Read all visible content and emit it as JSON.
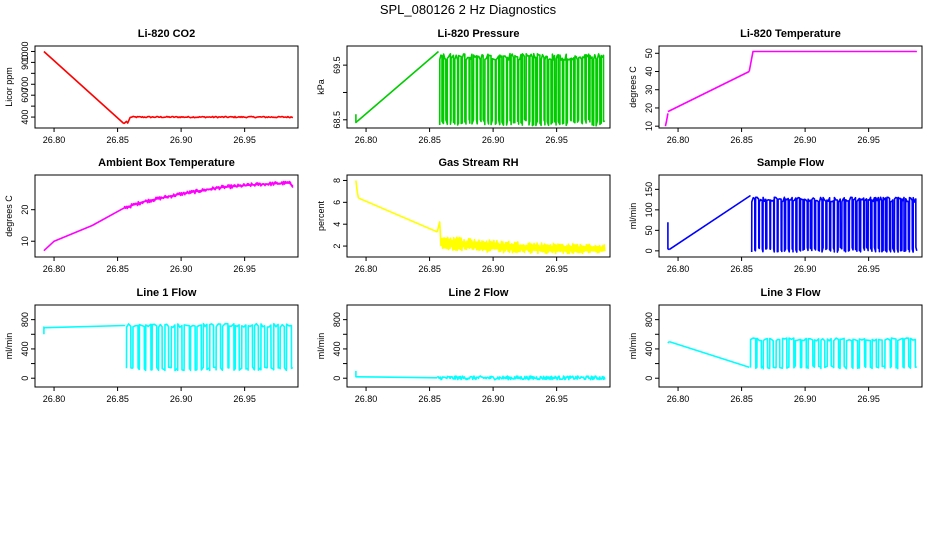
{
  "title": "SPL_080126  2 Hz Diagnostics",
  "colors": {
    "red": "#ff0000",
    "green": "#00cc00",
    "magenta": "#ff00ff",
    "yellow": "#ffff00",
    "blue": "#0000ff",
    "cyan": "#00ffff",
    "axis": "#000000"
  },
  "x_ticks": [
    "26.80",
    "26.85",
    "26.90",
    "26.95"
  ],
  "chart_data": [
    {
      "type": "line",
      "title": "Li-820 CO2",
      "ylabel": "Licor ppm",
      "xlabel": "",
      "color": "#ff0000",
      "xlim": [
        26.785,
        26.992
      ],
      "ylim": [
        300,
        1050
      ],
      "x_ticks": [
        26.8,
        26.85,
        26.9,
        26.95
      ],
      "y_ticks": [
        400,
        500,
        600,
        700,
        800,
        900,
        1000
      ],
      "y_tick_labels": [
        "400",
        "",
        "600",
        "700",
        "",
        "900",
        "1000"
      ],
      "segments": [
        {
          "kind": "line",
          "x": [
            26.792,
            26.855
          ],
          "y": [
            1000,
            340
          ]
        },
        {
          "kind": "line",
          "x": [
            26.855,
            26.857,
            26.858,
            26.86
          ],
          "y": [
            340,
            360,
            345,
            400
          ]
        },
        {
          "kind": "noise",
          "x0": 26.86,
          "x1": 26.988,
          "y": 400,
          "amp": 6,
          "n": 160
        }
      ]
    },
    {
      "type": "line",
      "title": "Li-820 Pressure",
      "ylabel": "kPa",
      "xlabel": "",
      "color": "#00cc00",
      "xlim": [
        26.785,
        26.992
      ],
      "ylim": [
        68.35,
        69.85
      ],
      "x_ticks": [
        26.8,
        26.85,
        26.9,
        26.95
      ],
      "y_ticks": [
        68.5,
        69.0,
        69.5
      ],
      "y_tick_labels": [
        "68.5",
        "",
        "69.5"
      ],
      "segments": [
        {
          "kind": "line",
          "x": [
            26.792,
            26.792,
            26.793
          ],
          "y": [
            68.6,
            68.45,
            68.47
          ]
        },
        {
          "kind": "line",
          "x": [
            26.793,
            26.857
          ],
          "y": [
            68.47,
            69.75
          ]
        },
        {
          "kind": "square",
          "x0": 26.858,
          "x1": 26.988,
          "hi": 69.65,
          "lo": 68.45,
          "cycles": 44,
          "jitter": 0.06
        }
      ]
    },
    {
      "type": "line",
      "title": "Li-820 Temperature",
      "ylabel": "degrees C",
      "xlabel": "",
      "color": "#ff00ff",
      "xlim": [
        26.785,
        26.992
      ],
      "ylim": [
        9,
        54
      ],
      "x_ticks": [
        26.8,
        26.85,
        26.9,
        26.95
      ],
      "y_ticks": [
        10,
        20,
        30,
        40,
        50
      ],
      "y_tick_labels": [
        "10",
        "20",
        "30",
        "40",
        "50"
      ],
      "segments": [
        {
          "kind": "line",
          "x": [
            26.79,
            26.791,
            26.792
          ],
          "y": [
            10,
            13,
            17
          ]
        },
        {
          "kind": "line",
          "x": [
            26.792,
            26.856
          ],
          "y": [
            18,
            40
          ]
        },
        {
          "kind": "line",
          "x": [
            26.856,
            26.859,
            26.988
          ],
          "y": [
            40,
            51,
            51
          ]
        }
      ]
    },
    {
      "type": "line",
      "title": "Ambient Box Temperature",
      "ylabel": "degrees C",
      "xlabel": "",
      "color": "#ff00ff",
      "xlim": [
        26.785,
        26.992
      ],
      "ylim": [
        5,
        31
      ],
      "x_ticks": [
        26.8,
        26.85,
        26.9,
        26.95
      ],
      "y_ticks": [
        10,
        20
      ],
      "y_tick_labels": [
        "10",
        "20"
      ],
      "segments": [
        {
          "kind": "line",
          "x": [
            26.792,
            26.8,
            26.83,
            26.855,
            26.87,
            26.9,
            26.93,
            26.96,
            26.985,
            26.988
          ],
          "y": [
            7,
            10,
            15,
            20.5,
            22.5,
            25,
            27,
            28,
            28.5,
            27.5
          ]
        },
        {
          "kind": "noise",
          "x0": 26.855,
          "x1": 26.988,
          "y": null,
          "amp": 0.6,
          "n": 200,
          "follow": true
        }
      ]
    },
    {
      "type": "line",
      "title": "Gas Stream RH",
      "ylabel": "percent",
      "xlabel": "",
      "color": "#ffff00",
      "xlim": [
        26.785,
        26.992
      ],
      "ylim": [
        1,
        8.5
      ],
      "x_ticks": [
        26.8,
        26.85,
        26.9,
        26.95
      ],
      "y_ticks": [
        2,
        4,
        6,
        8
      ],
      "y_tick_labels": [
        "2",
        "4",
        "6",
        "8"
      ],
      "segments": [
        {
          "kind": "line",
          "x": [
            26.792,
            26.793,
            26.794
          ],
          "y": [
            8.0,
            7.0,
            6.4
          ]
        },
        {
          "kind": "line",
          "x": [
            26.794,
            26.856
          ],
          "y": [
            6.4,
            3.3
          ]
        },
        {
          "kind": "line",
          "x": [
            26.856,
            26.858,
            26.859
          ],
          "y": [
            3.3,
            4.2,
            2.0
          ]
        },
        {
          "kind": "decay",
          "x0": 26.859,
          "x1": 26.988,
          "start": 2.4,
          "end": 1.7,
          "amp": 0.45,
          "n": 220
        }
      ]
    },
    {
      "type": "line",
      "title": "Sample Flow",
      "ylabel": "ml/min",
      "xlabel": "",
      "color": "#0000ff",
      "xlim": [
        26.785,
        26.992
      ],
      "ylim": [
        -15,
        185
      ],
      "x_ticks": [
        26.8,
        26.85,
        26.9,
        26.95
      ],
      "y_ticks": [
        0,
        50,
        100,
        150
      ],
      "y_tick_labels": [
        "0",
        "50",
        "100",
        "150"
      ],
      "segments": [
        {
          "kind": "line",
          "x": [
            26.792,
            26.792,
            26.793
          ],
          "y": [
            70,
            5,
            3
          ]
        },
        {
          "kind": "line",
          "x": [
            26.793,
            26.857
          ],
          "y": [
            3,
            135
          ]
        },
        {
          "kind": "square",
          "x0": 26.858,
          "x1": 26.988,
          "hi": 125,
          "lo": 3,
          "cycles": 44,
          "jitter": 6
        }
      ]
    },
    {
      "type": "line",
      "title": "Line 1 Flow",
      "ylabel": "ml/min",
      "xlabel": "",
      "color": "#00ffff",
      "xlim": [
        26.785,
        26.992
      ],
      "ylim": [
        -120,
        1000
      ],
      "x_ticks": [
        26.8,
        26.85,
        26.9,
        26.95
      ],
      "y_ticks": [
        0,
        200,
        400,
        600,
        800
      ],
      "y_tick_labels": [
        "0",
        "",
        "400",
        "",
        "800"
      ],
      "segments": [
        {
          "kind": "line",
          "x": [
            26.792,
            26.792,
            26.793
          ],
          "y": [
            600,
            700,
            680
          ]
        },
        {
          "kind": "line",
          "x": [
            26.793,
            26.856
          ],
          "y": [
            690,
            720
          ]
        },
        {
          "kind": "square",
          "x0": 26.857,
          "x1": 26.988,
          "hi": 720,
          "lo": 130,
          "cycles": 26,
          "jitter": 25
        }
      ]
    },
    {
      "type": "line",
      "title": "Line 2 Flow",
      "ylabel": "ml/min",
      "xlabel": "",
      "color": "#00ffff",
      "xlim": [
        26.785,
        26.992
      ],
      "ylim": [
        -120,
        1000
      ],
      "x_ticks": [
        26.8,
        26.85,
        26.9,
        26.95
      ],
      "y_ticks": [
        0,
        200,
        400,
        600,
        800
      ],
      "y_tick_labels": [
        "0",
        "",
        "400",
        "",
        "800"
      ],
      "segments": [
        {
          "kind": "line",
          "x": [
            26.792,
            26.792,
            26.793,
            26.856
          ],
          "y": [
            100,
            20,
            20,
            5
          ]
        },
        {
          "kind": "noise",
          "x0": 26.856,
          "x1": 26.988,
          "y": 5,
          "amp": 25,
          "n": 260
        }
      ]
    },
    {
      "type": "line",
      "title": "Line 3 Flow",
      "ylabel": "ml/min",
      "xlabel": "",
      "color": "#00ffff",
      "xlim": [
        26.785,
        26.992
      ],
      "ylim": [
        -120,
        1000
      ],
      "x_ticks": [
        26.8,
        26.85,
        26.9,
        26.95
      ],
      "y_ticks": [
        0,
        200,
        400,
        600,
        800
      ],
      "y_tick_labels": [
        "0",
        "",
        "400",
        "",
        "800"
      ],
      "segments": [
        {
          "kind": "line",
          "x": [
            26.792,
            26.793
          ],
          "y": [
            480,
            500
          ]
        },
        {
          "kind": "line",
          "x": [
            26.793,
            26.856
          ],
          "y": [
            500,
            150
          ]
        },
        {
          "kind": "square",
          "x0": 26.857,
          "x1": 26.988,
          "hi": 530,
          "lo": 150,
          "cycles": 26,
          "jitter": 20
        }
      ]
    }
  ]
}
